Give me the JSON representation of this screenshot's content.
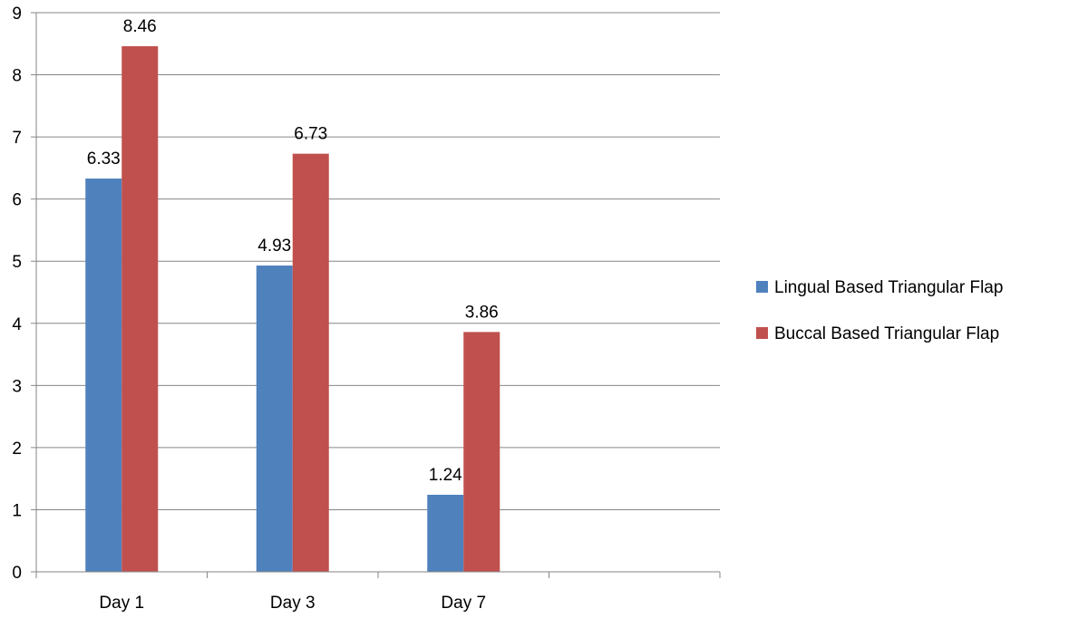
{
  "chart_data": {
    "type": "bar",
    "title": "",
    "xlabel": "",
    "ylabel": "",
    "categories": [
      "Day 1",
      "Day 3",
      "Day 7",
      ""
    ],
    "ylim": [
      0,
      9
    ],
    "yticks": [
      0,
      1,
      2,
      3,
      4,
      5,
      6,
      7,
      8,
      9
    ],
    "grid": true,
    "legend_position": "right",
    "series": [
      {
        "name": "Lingual Based Triangular Flap",
        "color": "#4f81bd",
        "values": [
          6.33,
          4.93,
          1.24,
          null
        ],
        "labels": [
          "6.33",
          "4.93",
          "1.24",
          ""
        ]
      },
      {
        "name": "Buccal Based Triangular Flap",
        "color": "#c0504d",
        "values": [
          8.46,
          6.73,
          3.86,
          null
        ],
        "labels": [
          "8.46",
          "6.73",
          "3.86",
          ""
        ]
      }
    ]
  }
}
